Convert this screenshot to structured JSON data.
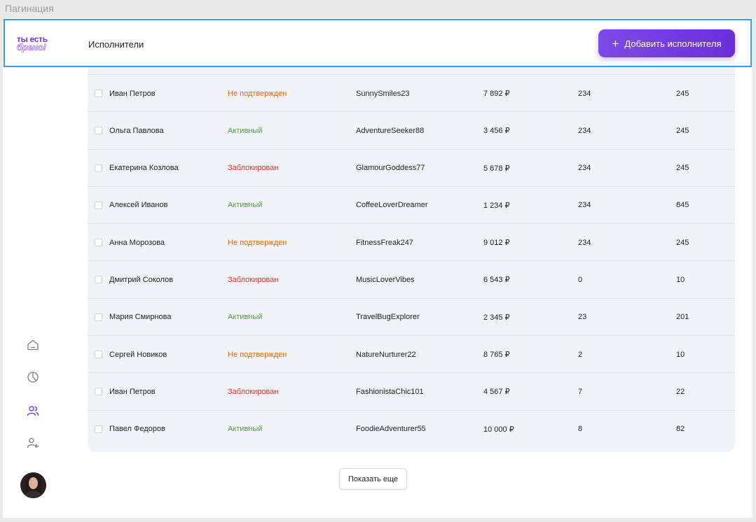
{
  "frame_label": "Пагинация",
  "header": {
    "logo_line1": "ты есть",
    "logo_line2": "брено!",
    "title": "Исполнители",
    "add_button_label": "Добавить исполнителя",
    "accent_color": "#6a2fd8"
  },
  "sidebar": {
    "items": [
      {
        "name": "home",
        "icon": "home-icon"
      },
      {
        "name": "analytics",
        "icon": "pie-chart-icon"
      },
      {
        "name": "users",
        "icon": "users-icon",
        "active": true
      },
      {
        "name": "user-add",
        "icon": "user-arrow-icon"
      }
    ],
    "avatar": "avatar"
  },
  "table": {
    "rows": [
      {
        "name": "Иван Петров",
        "status": "Не подтвержден",
        "status_type": "pending",
        "login": "SunnySmiles23",
        "sum": "7 892 ₽",
        "a": "234",
        "b": "245"
      },
      {
        "name": "Ольга Павлова",
        "status": "Активный",
        "status_type": "active",
        "login": "AdventureSeeker88",
        "sum": "3 456 ₽",
        "a": "234",
        "b": "245"
      },
      {
        "name": "Екатерина Козлова",
        "status": "Заблокирован",
        "status_type": "blocked",
        "login": "GlamourGoddess77",
        "sum": "5 678 ₽",
        "a": "234",
        "b": "245"
      },
      {
        "name": "Алексей Иванов",
        "status": "Активный",
        "status_type": "active",
        "login": "CoffeeLoverDreamer",
        "sum": "1 234 ₽",
        "a": "234",
        "b": "845"
      },
      {
        "name": "Анна Морозова",
        "status": "Не подтвержден",
        "status_type": "pending",
        "login": "FitnessFreak247",
        "sum": "9 012 ₽",
        "a": "234",
        "b": "245"
      },
      {
        "name": "Дмитрий Соколов",
        "status": "Заблокирован",
        "status_type": "blocked",
        "login": "MusicLoverVibes",
        "sum": "6 543 ₽",
        "a": "0",
        "b": "10"
      },
      {
        "name": "Мария Смирнова",
        "status": "Активный",
        "status_type": "active",
        "login": "TravelBugExplorer",
        "sum": "2 345 ₽",
        "a": "23",
        "b": "201"
      },
      {
        "name": "Сергей Новиков",
        "status": "Не подтвержден",
        "status_type": "pending",
        "login": "NatureNurturer22",
        "sum": "8 765 ₽",
        "a": "2",
        "b": "10"
      },
      {
        "name": "Иван Петров",
        "status": "Заблокирован",
        "status_type": "blocked",
        "login": "FashionistaChic101",
        "sum": "4 567 ₽",
        "a": "7",
        "b": "22"
      },
      {
        "name": "Павел Федоров",
        "status": "Активный",
        "status_type": "active",
        "login": "FoodieAdventurer55",
        "sum": "10 000 ₽",
        "a": "8",
        "b": "82"
      }
    ]
  },
  "pagination": {
    "show_more_label": "Показать еще"
  }
}
